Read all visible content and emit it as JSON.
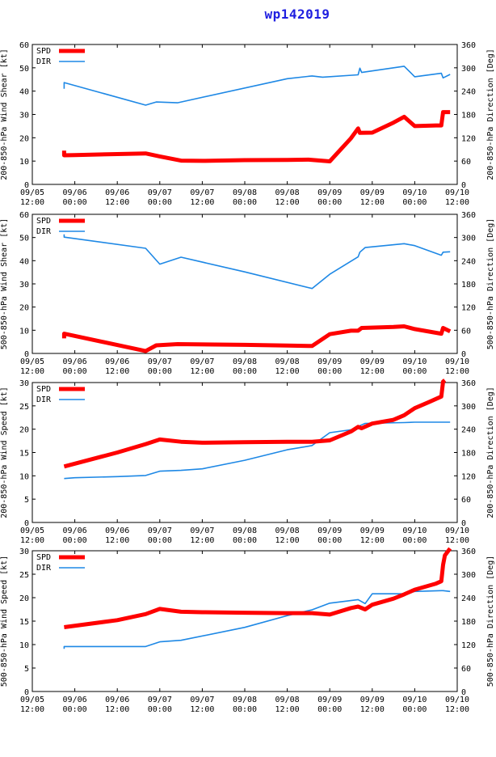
{
  "title": "wp142019",
  "colors": {
    "spd": "#ff0000",
    "dir": "#1e88e5",
    "frame": "#000000",
    "title": "#1f1fe0"
  },
  "legend": {
    "spd": "SPD",
    "dir": "DIR"
  },
  "x_ticks": [
    {
      "t": 0,
      "line1": "09/05",
      "line2": "12:00"
    },
    {
      "t": 12,
      "line1": "09/06",
      "line2": "00:00"
    },
    {
      "t": 24,
      "line1": "09/06",
      "line2": "12:00"
    },
    {
      "t": 36,
      "line1": "09/07",
      "line2": "00:00"
    },
    {
      "t": 48,
      "line1": "09/07",
      "line2": "12:00"
    },
    {
      "t": 60,
      "line1": "09/08",
      "line2": "00:00"
    },
    {
      "t": 72,
      "line1": "09/08",
      "line2": "12:00"
    },
    {
      "t": 84,
      "line1": "09/09",
      "line2": "00:00"
    },
    {
      "t": 96,
      "line1": "09/09",
      "line2": "12:00"
    },
    {
      "t": 108,
      "line1": "09/10",
      "line2": "00:00"
    },
    {
      "t": 120,
      "line1": "09/10",
      "line2": "12:00"
    }
  ],
  "chart_data": [
    {
      "type": "line",
      "ylabel_left": "200-850-hPa Wind Shear [kt]",
      "ylabel_right": "200-850-hPa Direction [Deg]",
      "ylim_left": [
        0,
        60
      ],
      "yticks_left": [
        0,
        10,
        20,
        30,
        40,
        50,
        60
      ],
      "ylim_right": [
        0,
        360
      ],
      "yticks_right": [
        0,
        60,
        120,
        180,
        240,
        300,
        360
      ],
      "xlim": [
        0,
        120
      ],
      "series": [
        {
          "name": "SPD",
          "axis": "left",
          "x": [
            9,
            9,
            12,
            24,
            32,
            36,
            42,
            48,
            60,
            72,
            78,
            84,
            90,
            92,
            92.5,
            96,
            102,
            105,
            108,
            114,
            115.5,
            116,
            118
          ],
          "y": [
            14.5,
            12.5,
            12.6,
            13,
            13.3,
            12,
            10.2,
            10.1,
            10.4,
            10.5,
            10.6,
            9.9,
            19.8,
            24,
            22.1,
            22.2,
            26.5,
            29,
            25,
            25.3,
            25.3,
            31,
            31
          ]
        },
        {
          "name": "DIR",
          "axis": "right",
          "x": [
            9,
            9,
            32,
            35,
            41,
            72,
            79,
            82,
            92,
            92.5,
            93,
            105,
            108,
            115.5,
            116,
            118
          ],
          "y": [
            246,
            262,
            204,
            212,
            210,
            272,
            279,
            276,
            282,
            299,
            288,
            304,
            277,
            286,
            274,
            283
          ]
        }
      ]
    },
    {
      "type": "line",
      "ylabel_left": "500-850-hPa Wind Shear [kt]",
      "ylabel_right": "500-850-hPa Direction [Deg]",
      "ylim_left": [
        0,
        60
      ],
      "yticks_left": [
        0,
        10,
        20,
        30,
        40,
        50,
        60
      ],
      "ylim_right": [
        0,
        360
      ],
      "yticks_right": [
        0,
        60,
        120,
        180,
        240,
        300,
        360
      ],
      "xlim": [
        0,
        120
      ],
      "series": [
        {
          "name": "SPD",
          "axis": "left",
          "x": [
            9,
            9,
            32,
            35,
            41,
            60,
            72,
            79,
            84,
            90,
            92,
            93,
            102,
            105,
            108,
            115.5,
            116,
            118
          ],
          "y": [
            6.5,
            8.5,
            1,
            3.5,
            4,
            3.7,
            3.4,
            3.2,
            8.3,
            9.8,
            9.8,
            11,
            11.4,
            11.7,
            10.5,
            8.5,
            11,
            9.5
          ]
        },
        {
          "name": "DIR",
          "axis": "right",
          "x": [
            9,
            9,
            32,
            36,
            42,
            60,
            79,
            84,
            92,
            92.5,
            94,
            105,
            108,
            115.5,
            116,
            118
          ],
          "y": [
            308,
            301,
            272,
            231,
            249,
            211,
            168,
            205,
            250,
            262,
            274,
            284,
            279,
            254,
            262,
            263
          ]
        }
      ]
    },
    {
      "type": "line",
      "ylabel_left": "200-850-hPa Wind Speed [kt]",
      "ylabel_right": "200-850-hPa Direction [Deg]",
      "ylim_left": [
        0,
        30
      ],
      "yticks_left": [
        0,
        5,
        10,
        15,
        20,
        25,
        30
      ],
      "ylim_right": [
        0,
        360
      ],
      "yticks_right": [
        0,
        60,
        120,
        180,
        240,
        300,
        360
      ],
      "xlim": [
        0,
        120
      ],
      "series": [
        {
          "name": "SPD",
          "axis": "left",
          "x": [
            9,
            24,
            32,
            36,
            42,
            48,
            60,
            72,
            79,
            84,
            90,
            92,
            93,
            96,
            102,
            105,
            108,
            112,
            115.5,
            116,
            116.5
          ],
          "y": [
            12,
            15,
            16.8,
            17.8,
            17.3,
            17.1,
            17.2,
            17.3,
            17.3,
            17.6,
            19.5,
            20.5,
            20.2,
            21.2,
            22,
            23,
            24.5,
            25.8,
            27,
            30.2,
            30.5
          ]
        },
        {
          "name": "DIR",
          "axis": "right",
          "x": [
            9,
            12,
            24,
            32,
            36,
            42,
            48,
            60,
            72,
            79,
            84,
            92,
            92.5,
            94,
            105,
            108,
            115.5,
            116,
            118
          ],
          "y": [
            113,
            115,
            118,
            121,
            132,
            134,
            138,
            160,
            187,
            198,
            231,
            241,
            249,
            255,
            257,
            258,
            258,
            258,
            258
          ]
        }
      ]
    },
    {
      "type": "line",
      "ylabel_left": "500-850-hPa Wind Speed [kt]",
      "ylabel_right": "500-850-hPa Direction [Deg]",
      "ylim_left": [
        0,
        30
      ],
      "yticks_left": [
        0,
        5,
        10,
        15,
        20,
        25,
        30
      ],
      "ylim_right": [
        0,
        360
      ],
      "yticks_right": [
        0,
        60,
        120,
        180,
        240,
        300,
        360
      ],
      "xlim": [
        0,
        120
      ],
      "series": [
        {
          "name": "SPD",
          "axis": "left",
          "x": [
            9,
            24,
            32,
            36,
            42,
            48,
            60,
            72,
            79,
            84,
            90,
            92,
            94,
            96,
            102,
            105,
            108,
            114,
            115.5,
            116,
            116.5,
            118
          ],
          "y": [
            13.7,
            15.2,
            16.5,
            17.6,
            17,
            16.9,
            16.8,
            16.7,
            16.7,
            16.4,
            17.8,
            18.1,
            17.5,
            18.5,
            19.8,
            20.7,
            21.7,
            23,
            23.5,
            27,
            29,
            30.5
          ]
        },
        {
          "name": "DIR",
          "axis": "right",
          "x": [
            9,
            9,
            32,
            36,
            42,
            60,
            72,
            79,
            84,
            92,
            94,
            96,
            105,
            108,
            115.5,
            116,
            118
          ],
          "y": [
            109,
            115,
            115,
            127,
            131,
            164,
            194,
            209,
            226,
            235,
            225,
            250,
            250,
            256,
            258,
            258,
            256
          ]
        }
      ]
    }
  ]
}
